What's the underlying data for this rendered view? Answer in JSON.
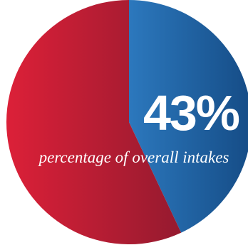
{
  "chart_data": {
    "type": "pie",
    "slices": [
      {
        "value": 43,
        "color": "#1f5c9c"
      },
      {
        "value": 57,
        "color": "#c21f36"
      }
    ],
    "data_label": "43%",
    "annotation": "percentage of overall intakes"
  },
  "colors": {
    "blue_light": "#2c78bd",
    "blue_dark": "#154c86",
    "red_light": "#dc2038",
    "red_dark": "#951a2f",
    "text": "#ffffff"
  }
}
